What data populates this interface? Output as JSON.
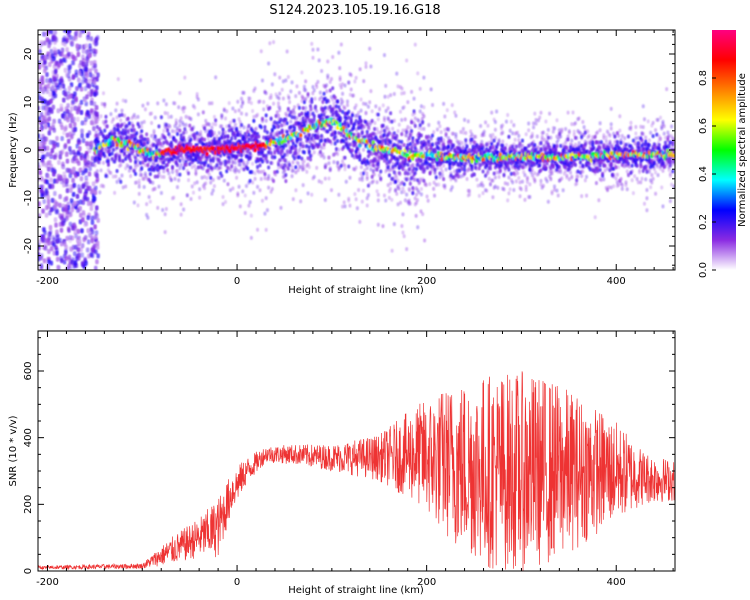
{
  "figure": {
    "title": "S124.2023.105.19.16.G18"
  },
  "chart_data": [
    {
      "type": "heatmap",
      "panel": "spectrogram",
      "xlabel": "Height of straight line (km)",
      "ylabel": "Frequency (Hz)",
      "xlim": [
        -210,
        462
      ],
      "ylim": [
        -25,
        25
      ],
      "xticks": [
        -200,
        0,
        200,
        400
      ],
      "yticks": [
        -20,
        -10,
        0,
        10,
        20
      ],
      "grid": false,
      "colorbar": {
        "label": "Normalized spectral amplitude",
        "range": [
          0,
          1
        ],
        "ticks": [
          "0.0",
          "0.2",
          "0.4",
          "0.6",
          "0.8"
        ],
        "ticks_values": [
          0,
          0.2,
          0.4,
          0.6,
          0.8
        ],
        "colormap": [
          "#ffffff",
          "#8a2be2",
          "#0000ff",
          "#00ffff",
          "#00ff00",
          "#ffff00",
          "#ff8000",
          "#ff0000",
          "#ff0080"
        ]
      },
      "ridge": {
        "x": [
          -150,
          -130,
          -110,
          -100,
          -90,
          -60,
          -30,
          0,
          30,
          60,
          80,
          100,
          120,
          140,
          160,
          180,
          200,
          240,
          280,
          320,
          360,
          400,
          440,
          462
        ],
        "y": [
          0,
          2,
          1,
          0,
          -1,
          0,
          0,
          0.5,
          1,
          3,
          5,
          6,
          3,
          1,
          0,
          -1,
          -1,
          -1.5,
          -1.5,
          -1.5,
          -1.5,
          -1,
          -1,
          -1
        ]
      },
      "noise_region_x": [
        -210,
        -150
      ]
    },
    {
      "type": "line",
      "panel": "snr",
      "xlabel": "Height of straight line (km)",
      "ylabel": "SNR (10 * v/v)",
      "xlim": [
        -210,
        462
      ],
      "ylim": [
        0,
        720
      ],
      "xticks": [
        -200,
        0,
        200,
        400
      ],
      "yticks": [
        0,
        200,
        400,
        600
      ],
      "grid": false,
      "series": [
        {
          "color": "#ee3333",
          "envelope": {
            "x": [
              -210,
              -100,
              -70,
              -40,
              -20,
              -5,
              10,
              30,
              60,
              100,
              150,
              190,
              230,
              270,
              300,
              330,
              360,
              400,
              430,
              462
            ],
            "mean": [
              10,
              15,
              60,
              100,
              130,
              240,
              300,
              350,
              350,
              340,
              340,
              350,
              320,
              300,
              300,
              300,
              300,
              300,
              280,
              270
            ],
            "amp": [
              5,
              8,
              40,
              60,
              90,
              60,
              40,
              25,
              30,
              40,
              70,
              150,
              250,
              300,
              300,
              280,
              230,
              150,
              80,
              60
            ]
          }
        }
      ]
    }
  ]
}
